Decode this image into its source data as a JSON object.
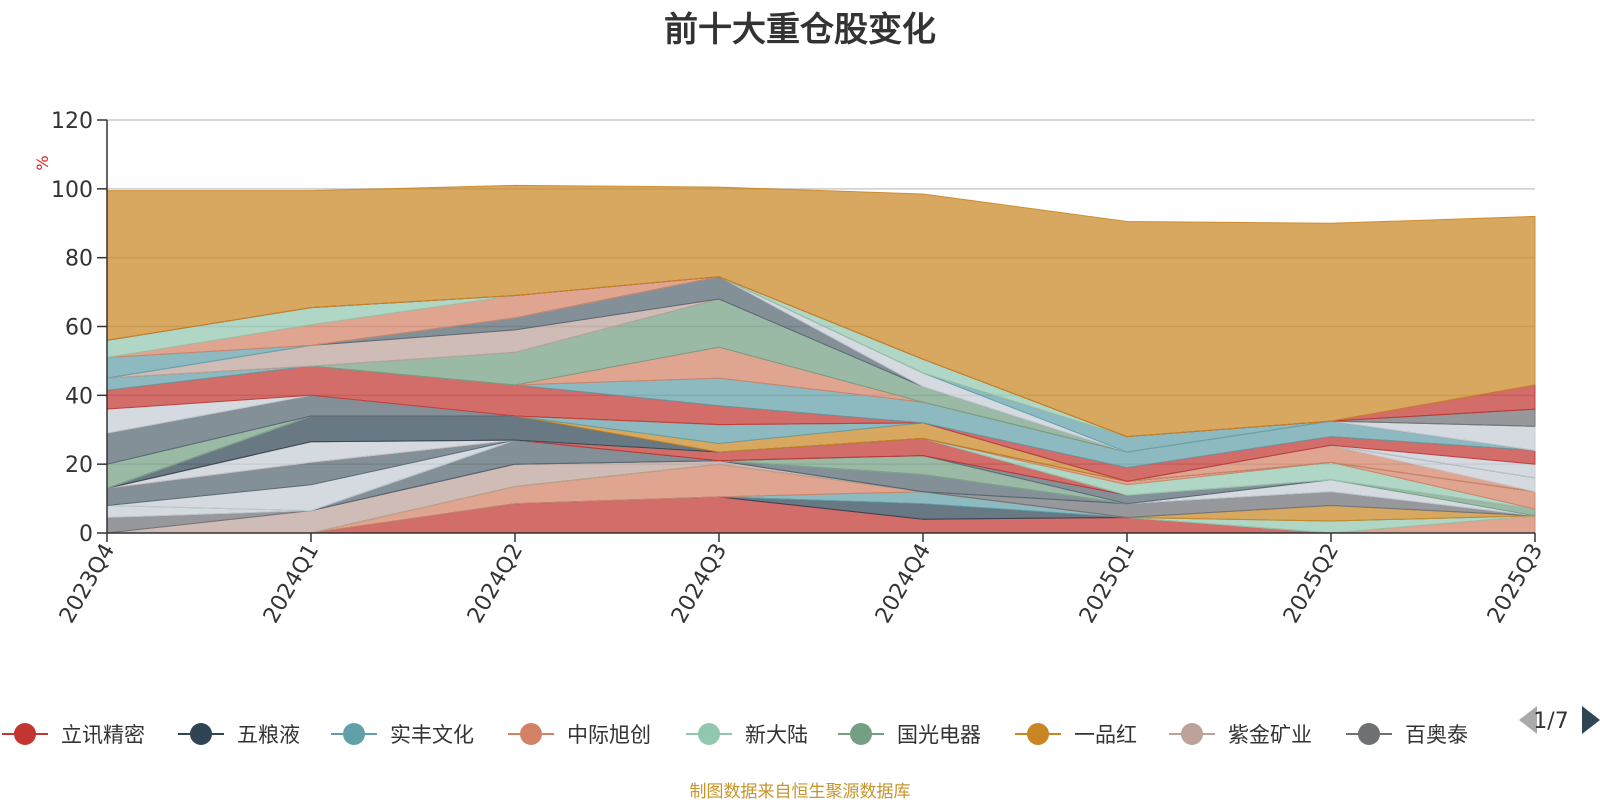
{
  "title": "前十大重仓股变化",
  "footer": "制图数据来自恒生聚源数据库",
  "legend_page": "1/7",
  "chart_data": {
    "type": "area",
    "stacked": true,
    "x": [
      "2023Q4",
      "2024Q1",
      "2024Q2",
      "2024Q3",
      "2024Q4",
      "2025Q1",
      "2025Q2",
      "2025Q3"
    ],
    "ylabel": "%",
    "ylim": [
      0,
      120
    ],
    "yticks": [
      0,
      20,
      40,
      60,
      80,
      100,
      120
    ],
    "grid": true,
    "legend_position": "bottom",
    "series": [
      {
        "name": "立讯精密",
        "color": "#c23531",
        "values": [
          0,
          0,
          8.5,
          10.5,
          4,
          4.5,
          0,
          0
        ]
      },
      {
        "name": "五粮液",
        "color": "#2f4554",
        "values": [
          0,
          0,
          0,
          0,
          4.5,
          0,
          0,
          0
        ]
      },
      {
        "name": "实丰文化",
        "color": "#61a0a8",
        "values": [
          0,
          0,
          0,
          0,
          3.5,
          0,
          0,
          0
        ]
      },
      {
        "name": "中际旭创",
        "color": "#d48265",
        "values": [
          0,
          0,
          5,
          9.5,
          0,
          0,
          0,
          5
        ]
      },
      {
        "name": "新大陆",
        "color": "#91c7ae",
        "values": [
          0,
          0,
          0,
          0,
          0,
          0,
          3.5,
          0
        ]
      },
      {
        "name": "国光电器",
        "color": "#749f83",
        "values": [
          0,
          0,
          0,
          0,
          0,
          0,
          0,
          0
        ]
      },
      {
        "name": "一品红",
        "color": "#ca8622",
        "values": [
          0,
          0,
          0,
          0,
          0,
          0,
          4.5,
          0
        ]
      },
      {
        "name": "紫金矿业",
        "color": "#bda29a",
        "values": [
          0,
          6.5,
          6.5,
          1,
          0,
          0,
          0,
          0
        ]
      },
      {
        "name": "百奥泰",
        "color": "#6e7074",
        "values": [
          4.5,
          0,
          0,
          0,
          0,
          4,
          4,
          0
        ]
      },
      {
        "name": "",
        "color": "#546570",
        "values": [
          0,
          0,
          7,
          0,
          5,
          0,
          0,
          0
        ]
      },
      {
        "name": "",
        "color": "#c4ccd3",
        "values": [
          3.5,
          0,
          0,
          0,
          0,
          0,
          3.5,
          0
        ]
      },
      {
        "name": "",
        "color": "#749f83",
        "values": [
          0,
          0,
          0,
          0,
          5.5,
          0,
          0,
          2
        ]
      },
      {
        "name": "",
        "color": "#c4ccd3",
        "values": [
          0,
          7.5,
          0,
          0,
          0,
          0,
          0,
          0
        ]
      },
      {
        "name": "",
        "color": "#546570",
        "values": [
          5,
          6.5,
          0,
          0,
          0,
          2.5,
          0,
          0
        ]
      },
      {
        "name": "",
        "color": "#c23531",
        "values": [
          0,
          0,
          0,
          2.5,
          5,
          0,
          0,
          0
        ]
      },
      {
        "name": "",
        "color": "#c4ccd3",
        "values": [
          0,
          6,
          0,
          0,
          0,
          0,
          0,
          0
        ]
      },
      {
        "name": "",
        "color": "#91c7ae",
        "values": [
          0,
          0,
          0,
          0,
          0,
          3,
          5,
          0
        ]
      },
      {
        "name": "",
        "color": "#d48265",
        "values": [
          0,
          0,
          0,
          0,
          0,
          1,
          0,
          5
        ]
      },
      {
        "name": "",
        "color": "#2f4554",
        "values": [
          0,
          7.5,
          7,
          0,
          0,
          0,
          0,
          0
        ]
      },
      {
        "name": "",
        "color": "#ca8622",
        "values": [
          0,
          0,
          0,
          2.5,
          4.5,
          0,
          0,
          0
        ]
      },
      {
        "name": "",
        "color": "#61a0a8",
        "values": [
          0,
          0,
          0,
          5.5,
          0,
          0,
          0,
          0
        ]
      },
      {
        "name": "",
        "color": "#d48265",
        "values": [
          0,
          0,
          0,
          0,
          0,
          0,
          5,
          0
        ]
      },
      {
        "name": "",
        "color": "#c4ccd3",
        "values": [
          0,
          0,
          0,
          0,
          0,
          0,
          0,
          4
        ]
      },
      {
        "name": "",
        "color": "#749f83",
        "values": [
          7,
          0,
          0,
          0,
          0,
          0,
          0,
          0
        ]
      },
      {
        "name": "",
        "color": "#546570",
        "values": [
          9,
          6,
          0,
          0,
          0,
          0,
          0,
          0
        ]
      },
      {
        "name": "",
        "color": "#c4ccd3",
        "values": [
          7,
          0,
          0,
          0,
          0,
          0,
          0,
          4
        ]
      },
      {
        "name": "",
        "color": "#c23531",
        "values": [
          5.5,
          8.5,
          9,
          5.5,
          0,
          4,
          2.5,
          4
        ]
      },
      {
        "name": "",
        "color": "#61a0a8",
        "values": [
          3.5,
          0,
          0,
          8,
          6,
          4.5,
          4.5,
          0
        ]
      },
      {
        "name": "",
        "color": "#d48265",
        "values": [
          0,
          0,
          0,
          9,
          0,
          0,
          0,
          0
        ]
      },
      {
        "name": "",
        "color": "#749f83",
        "values": [
          0,
          0,
          9.5,
          14,
          4.5,
          0,
          0,
          0
        ]
      },
      {
        "name": "",
        "color": "#bda29a",
        "values": [
          0,
          6,
          6.5,
          0,
          0,
          0,
          0,
          0
        ]
      },
      {
        "name": "",
        "color": "#546570",
        "values": [
          0,
          0,
          3.5,
          6.5,
          0,
          0,
          0,
          0
        ]
      },
      {
        "name": "",
        "color": "#c4ccd3",
        "values": [
          0,
          0,
          0,
          0,
          4,
          0,
          0,
          7
        ]
      },
      {
        "name": "",
        "color": "#61a0a8",
        "values": [
          6,
          0,
          0,
          0,
          0,
          4.5,
          0,
          0
        ]
      },
      {
        "name": "",
        "color": "#d48265",
        "values": [
          0,
          6,
          6.5,
          0,
          0,
          0,
          0,
          0
        ]
      },
      {
        "name": "",
        "color": "#91c7ae",
        "values": [
          5,
          5,
          0,
          0,
          4,
          0,
          0,
          0
        ]
      },
      {
        "name": "",
        "color": "#6e7074",
        "values": [
          0,
          0,
          0,
          0,
          0,
          0,
          0,
          5
        ]
      },
      {
        "name": "",
        "color": "#c23531",
        "values": [
          0,
          0,
          0,
          0,
          0,
          0,
          0,
          7
        ]
      },
      {
        "name": "",
        "color": "#ca8622",
        "values": [
          43.5,
          34,
          32,
          26,
          48,
          62.5,
          57.5,
          49
        ]
      }
    ]
  }
}
